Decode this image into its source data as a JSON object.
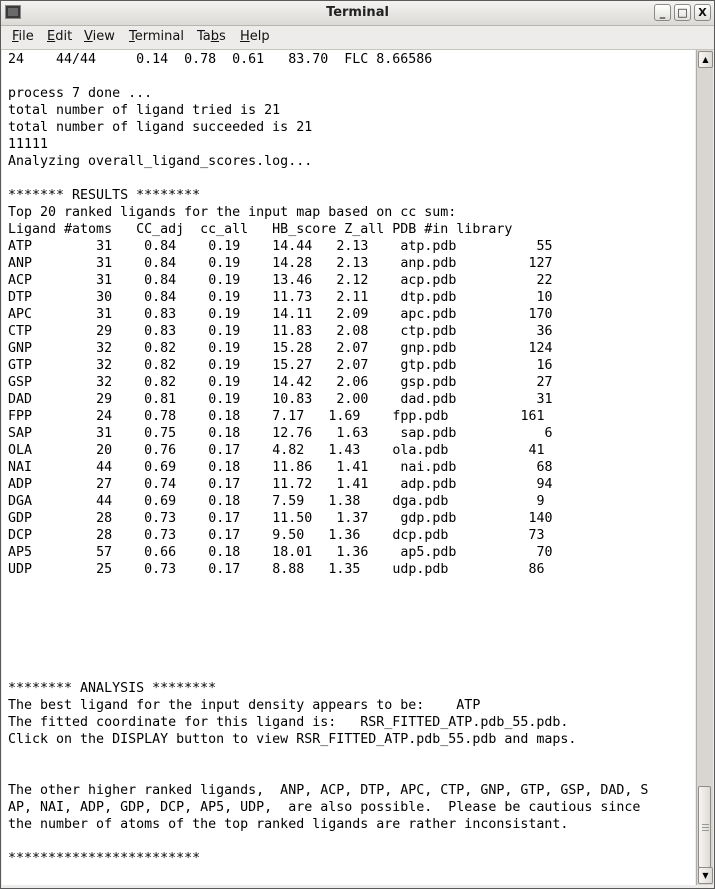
{
  "window": {
    "title": "Terminal"
  },
  "menu": [
    {
      "label": "File",
      "mnemonic": "F",
      "rest": "ile"
    },
    {
      "label": "Edit",
      "mnemonic": "E",
      "rest": "dit"
    },
    {
      "label": "View",
      "mnemonic": "V",
      "rest": "iew"
    },
    {
      "label": "Terminal",
      "mnemonic": "T",
      "rest": "erminal"
    },
    {
      "label": "Tabs",
      "pre": "Ta",
      "mnemonic": "b",
      "rest": "s"
    },
    {
      "label": "Help",
      "mnemonic": "H",
      "rest": "elp"
    }
  ],
  "terminal": {
    "pre_lines": [
      "24    44/44     0.14  0.78  0.61   83.70  FLC 8.66586",
      "",
      "process 7 done ...",
      "total number of ligand tried is 21",
      "total number of ligand succeeded is 21",
      "11111",
      "Analyzing overall_ligand_scores.log...",
      "",
      "******* RESULTS ********",
      "Top 20 ranked ligands for the input map based on cc sum:",
      "Ligand #atoms   CC_adj  cc_all   HB_score Z_all PDB #in library"
    ],
    "table": [
      [
        "ATP",
        "31",
        "0.84",
        "0.19",
        "14.44",
        "2.13",
        "atp.pdb",
        "55"
      ],
      [
        "ANP",
        "31",
        "0.84",
        "0.19",
        "14.28",
        "2.13",
        "anp.pdb",
        "127"
      ],
      [
        "ACP",
        "31",
        "0.84",
        "0.19",
        "13.46",
        "2.12",
        "acp.pdb",
        "22"
      ],
      [
        "DTP",
        "30",
        "0.84",
        "0.19",
        "11.73",
        "2.11",
        "dtp.pdb",
        "10"
      ],
      [
        "APC",
        "31",
        "0.83",
        "0.19",
        "14.11",
        "2.09",
        "apc.pdb",
        "170"
      ],
      [
        "CTP",
        "29",
        "0.83",
        "0.19",
        "11.83",
        "2.08",
        "ctp.pdb",
        "36"
      ],
      [
        "GNP",
        "32",
        "0.82",
        "0.19",
        "15.28",
        "2.07",
        "gnp.pdb",
        "124"
      ],
      [
        "GTP",
        "32",
        "0.82",
        "0.19",
        "15.27",
        "2.07",
        "gtp.pdb",
        "16"
      ],
      [
        "GSP",
        "32",
        "0.82",
        "0.19",
        "14.42",
        "2.06",
        "gsp.pdb",
        "27"
      ],
      [
        "DAD",
        "29",
        "0.81",
        "0.19",
        "10.83",
        "2.00",
        "dad.pdb",
        "31"
      ],
      [
        "FPP",
        "24",
        "0.78",
        "0.18",
        "7.17",
        "1.69",
        "fpp.pdb",
        "161"
      ],
      [
        "SAP",
        "31",
        "0.75",
        "0.18",
        "12.76",
        "1.63",
        "sap.pdb",
        "6"
      ],
      [
        "OLA",
        "20",
        "0.76",
        "0.17",
        "4.82",
        "1.43",
        "ola.pdb",
        "41"
      ],
      [
        "NAI",
        "44",
        "0.69",
        "0.18",
        "11.86",
        "1.41",
        "nai.pdb",
        "68"
      ],
      [
        "ADP",
        "27",
        "0.74",
        "0.17",
        "11.72",
        "1.41",
        "adp.pdb",
        "94"
      ],
      [
        "DGA",
        "44",
        "0.69",
        "0.18",
        "7.59",
        "1.38",
        "dga.pdb",
        "9"
      ],
      [
        "GDP",
        "28",
        "0.73",
        "0.17",
        "11.50",
        "1.37",
        "gdp.pdb",
        "140"
      ],
      [
        "DCP",
        "28",
        "0.73",
        "0.17",
        "9.50",
        "1.36",
        "dcp.pdb",
        "73"
      ],
      [
        "AP5",
        "57",
        "0.66",
        "0.18",
        "18.01",
        "1.36",
        "ap5.pdb",
        "70"
      ],
      [
        "UDP",
        "25",
        "0.73",
        "0.17",
        "8.88",
        "1.35",
        "udp.pdb",
        "86"
      ]
    ],
    "post_lines": [
      "",
      "",
      "",
      "",
      "",
      "",
      "******** ANALYSIS ********",
      "The best ligand for the input density appears to be:    ATP",
      "The fitted coordinate for this ligand is:   RSR_FITTED_ATP.pdb_55.pdb.",
      "Click on the DISPLAY button to view RSR_FITTED_ATP.pdb_55.pdb and maps.",
      "",
      "",
      "The other higher ranked ligands,  ANP, ACP, DTP, APC, CTP, GNP, GTP, GSP, DAD, S",
      "AP, NAI, ADP, GDP, DCP, AP5, UDP,  are also possible.  Please be cautious since",
      "the number of atoms of the top ranked ligands are rather inconsistant.",
      "",
      "************************"
    ]
  },
  "scrollbar": {
    "position_percent": 100
  },
  "icons": {
    "app": "terminal-icon",
    "minimize": "minimize-icon",
    "maximize": "maximize-icon",
    "close": "close-icon"
  }
}
